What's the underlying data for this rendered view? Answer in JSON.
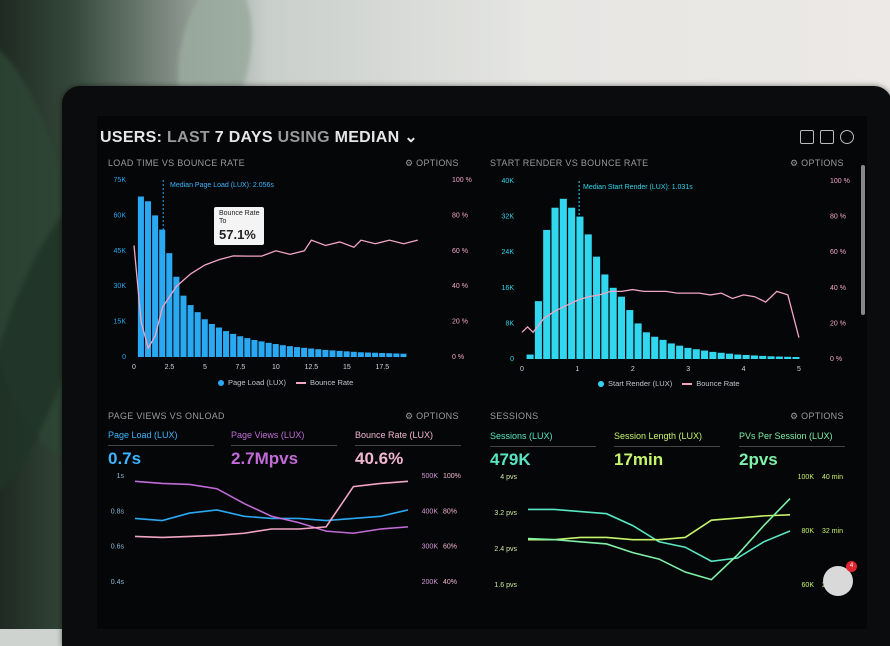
{
  "colors": {
    "blue": "#2aa8f2",
    "pink": "#f2a6c4",
    "cyan": "#31d6ef",
    "green": "#58e6c2",
    "lime": "#c6f56b",
    "purple": "#b05bd6",
    "muted": "#9a9a9a"
  },
  "header": {
    "prefix": "USERS:",
    "range_word": "LAST",
    "days": "7 DAYS",
    "using": "USING",
    "metric": "MEDIAN"
  },
  "panels": {
    "p1": {
      "title": "LOAD TIME VS BOUNCE RATE",
      "options": "⚙ OPTIONS",
      "annotation": "Median Page Load (LUX): 2.056s",
      "tooltip": {
        "label1": "Bounce Rate",
        "label2": "To",
        "value": "57.1%"
      },
      "legend": {
        "a": "Page Load (LUX)",
        "b": "Bounce Rate"
      }
    },
    "p2": {
      "title": "START RENDER VS BOUNCE RATE",
      "options": "⚙ OPTIONS",
      "annotation": "Median Start Render (LUX): 1.031s",
      "legend": {
        "a": "Start Render (LUX)",
        "b": "Bounce Rate"
      }
    },
    "p3": {
      "title": "PAGE VIEWS VS ONLOAD",
      "options": "⚙ OPTIONS",
      "kpis": [
        {
          "label": "Page Load (LUX)",
          "value": "0.7s"
        },
        {
          "label": "Page Views (LUX)",
          "value": "2.7Mpvs"
        },
        {
          "label": "Bounce Rate (LUX)",
          "value": "40.6%"
        }
      ]
    },
    "p4": {
      "title": "SESSIONS",
      "options": "⚙ OPTIONS",
      "kpis": [
        {
          "label": "Sessions (LUX)",
          "value": "479K"
        },
        {
          "label": "Session Length (LUX)",
          "value": "17min"
        },
        {
          "label": "PVs Per Session (LUX)",
          "value": "2pvs"
        }
      ]
    }
  },
  "badge": "4",
  "chart_data": [
    {
      "type": "bar",
      "title": "LOAD TIME VS BOUNCE RATE",
      "x": [
        0.5,
        1,
        1.5,
        2,
        2.5,
        3,
        3.5,
        4,
        4.5,
        5,
        5.5,
        6,
        6.5,
        7,
        7.5,
        8,
        8.5,
        9,
        9.5,
        10,
        10.5,
        11,
        11.5,
        12,
        12.5,
        13,
        13.5,
        14,
        14.5,
        15,
        15.5,
        16,
        16.5,
        17,
        17.5,
        18,
        18.5,
        19
      ],
      "series": [
        {
          "name": "Page Load (LUX)",
          "axis": "left",
          "values": [
            68000,
            66000,
            60000,
            54000,
            44000,
            34000,
            26000,
            22000,
            19000,
            16000,
            14000,
            12500,
            11000,
            9800,
            8800,
            8000,
            7200,
            6600,
            6000,
            5500,
            5000,
            4600,
            4200,
            3900,
            3600,
            3300,
            3000,
            2800,
            2600,
            2400,
            2200,
            2000,
            1900,
            1800,
            1700,
            1600,
            1500,
            1400
          ]
        },
        {
          "name": "Bounce Rate",
          "axis": "right",
          "points": [
            [
              0,
              63
            ],
            [
              0.5,
              20
            ],
            [
              1,
              5
            ],
            [
              1.5,
              12
            ],
            [
              2,
              28
            ],
            [
              3,
              40
            ],
            [
              4,
              47
            ],
            [
              5,
              52
            ],
            [
              6,
              55
            ],
            [
              7,
              57.1
            ],
            [
              8,
              57
            ],
            [
              9,
              57
            ],
            [
              10,
              60
            ],
            [
              11,
              58
            ],
            [
              12,
              60
            ],
            [
              12.5,
              66
            ],
            [
              13.5,
              63
            ],
            [
              14.5,
              65
            ],
            [
              15.5,
              62
            ],
            [
              16,
              66
            ],
            [
              17,
              64
            ],
            [
              18,
              66
            ],
            [
              19,
              64
            ],
            [
              20,
              66
            ]
          ]
        }
      ],
      "xticks": [
        "0",
        "2.5",
        "5",
        "7.5",
        "10",
        "12.5",
        "15",
        "17.5"
      ],
      "xlim": [
        0,
        21
      ],
      "yticks_left": [
        "0",
        "15K",
        "30K",
        "45K",
        "60K",
        "75K"
      ],
      "ylim_left": [
        0,
        75000
      ],
      "yticks_right": [
        "0 %",
        "20 %",
        "40 %",
        "60 %",
        "80 %",
        "100 %"
      ],
      "ylim_right": [
        0,
        100
      ],
      "marker_x": 2.056
    },
    {
      "type": "bar",
      "title": "START RENDER VS BOUNCE RATE",
      "x": [
        0.15,
        0.3,
        0.45,
        0.6,
        0.75,
        0.9,
        1.05,
        1.2,
        1.35,
        1.5,
        1.65,
        1.8,
        1.95,
        2.1,
        2.25,
        2.4,
        2.55,
        2.7,
        2.85,
        3.0,
        3.15,
        3.3,
        3.45,
        3.6,
        3.75,
        3.9,
        4.05,
        4.2,
        4.35,
        4.5,
        4.65,
        4.8,
        4.95
      ],
      "series": [
        {
          "name": "Start Render (LUX)",
          "axis": "left",
          "values": [
            1000,
            13000,
            29000,
            34000,
            36000,
            34000,
            32000,
            28000,
            23000,
            19000,
            16000,
            14000,
            11000,
            8000,
            6000,
            5000,
            4300,
            3500,
            3000,
            2500,
            2200,
            1900,
            1600,
            1400,
            1200,
            1000,
            900,
            800,
            700,
            600,
            550,
            500,
            450
          ]
        },
        {
          "name": "Bounce Rate",
          "axis": "right",
          "points": [
            [
              0,
              15
            ],
            [
              0.1,
              18
            ],
            [
              0.2,
              15
            ],
            [
              0.4,
              23
            ],
            [
              0.6,
              27
            ],
            [
              0.8,
              30
            ],
            [
              1.0,
              33
            ],
            [
              1.2,
              35
            ],
            [
              1.4,
              36
            ],
            [
              1.6,
              38
            ],
            [
              1.8,
              38
            ],
            [
              2.0,
              39
            ],
            [
              2.2,
              38
            ],
            [
              2.4,
              38
            ],
            [
              2.6,
              38
            ],
            [
              2.8,
              37
            ],
            [
              3.0,
              37
            ],
            [
              3.2,
              37
            ],
            [
              3.4,
              36
            ],
            [
              3.6,
              37
            ],
            [
              3.8,
              34
            ],
            [
              4.0,
              36
            ],
            [
              4.2,
              35
            ],
            [
              4.4,
              32
            ],
            [
              4.6,
              38
            ],
            [
              4.8,
              36
            ],
            [
              5.0,
              12
            ]
          ]
        }
      ],
      "xticks": [
        "0",
        "1",
        "2",
        "3",
        "4",
        "5"
      ],
      "xlim": [
        0,
        5.2
      ],
      "yticks_left": [
        "0",
        "8K",
        "16K",
        "24K",
        "32K",
        "40K"
      ],
      "ylim_left": [
        0,
        40000
      ],
      "yticks_right": [
        "0 %",
        "20 %",
        "40 %",
        "60 %",
        "80 %",
        "100 %"
      ],
      "ylim_right": [
        0,
        100
      ],
      "marker_x": 1.031
    },
    {
      "type": "line",
      "title": "PAGE VIEWS VS ONLOAD",
      "series": [
        {
          "name": "Page Load (LUX)",
          "points": [
            [
              0,
              0.6
            ],
            [
              1,
              0.58
            ],
            [
              2,
              0.65
            ],
            [
              3,
              0.68
            ],
            [
              4,
              0.62
            ],
            [
              5,
              0.6
            ],
            [
              6,
              0.6
            ],
            [
              7,
              0.58
            ],
            [
              8,
              0.6
            ],
            [
              9,
              0.62
            ],
            [
              10,
              0.68
            ]
          ]
        },
        {
          "name": "Page Views (LUX)",
          "points": [
            [
              0,
              0.95
            ],
            [
              1,
              0.93
            ],
            [
              2,
              0.92
            ],
            [
              3,
              0.88
            ],
            [
              4,
              0.74
            ],
            [
              5,
              0.62
            ],
            [
              6,
              0.56
            ],
            [
              7,
              0.48
            ],
            [
              8,
              0.46
            ],
            [
              9,
              0.5
            ],
            [
              10,
              0.52
            ]
          ]
        },
        {
          "name": "Bounce Rate (LUX)",
          "points": [
            [
              0,
              0.43
            ],
            [
              1,
              0.42
            ],
            [
              2,
              0.43
            ],
            [
              3,
              0.44
            ],
            [
              4,
              0.46
            ],
            [
              5,
              0.5
            ],
            [
              6,
              0.5
            ],
            [
              7,
              0.52
            ],
            [
              8,
              0.9
            ],
            [
              9,
              0.93
            ],
            [
              10,
              0.95
            ]
          ]
        }
      ],
      "yticks_left": [
        "0.4s",
        "0.6s",
        "0.8s",
        "1s"
      ],
      "yticks_mid": [
        "200K",
        "300K",
        "400K",
        "500K"
      ],
      "yticks_right": [
        "40%",
        "60%",
        "80%",
        "100%"
      ]
    },
    {
      "type": "line",
      "title": "SESSIONS",
      "series": [
        {
          "name": "Sessions (LUX)",
          "points": [
            [
              0,
              0.7
            ],
            [
              1,
              0.7
            ],
            [
              2,
              0.68
            ],
            [
              3,
              0.66
            ],
            [
              4,
              0.55
            ],
            [
              5,
              0.4
            ],
            [
              6,
              0.35
            ],
            [
              7,
              0.22
            ],
            [
              8,
              0.25
            ],
            [
              9,
              0.4
            ],
            [
              10,
              0.5
            ]
          ]
        },
        {
          "name": "Session Length (LUX)",
          "points": [
            [
              0,
              0.42
            ],
            [
              1,
              0.42
            ],
            [
              2,
              0.44
            ],
            [
              3,
              0.44
            ],
            [
              4,
              0.42
            ],
            [
              5,
              0.42
            ],
            [
              6,
              0.44
            ],
            [
              7,
              0.6
            ],
            [
              8,
              0.62
            ],
            [
              9,
              0.64
            ],
            [
              10,
              0.65
            ]
          ]
        },
        {
          "name": "PVs Per Session (LUX)",
          "points": [
            [
              0,
              0.43
            ],
            [
              1,
              0.42
            ],
            [
              2,
              0.4
            ],
            [
              3,
              0.38
            ],
            [
              4,
              0.3
            ],
            [
              5,
              0.24
            ],
            [
              6,
              0.12
            ],
            [
              7,
              0.05
            ],
            [
              8,
              0.28
            ],
            [
              9,
              0.55
            ],
            [
              10,
              0.8
            ]
          ]
        }
      ],
      "yticks_left": [
        "1.6 pvs",
        "2.4 pvs",
        "3.2 pvs",
        "4 pvs"
      ],
      "yticks_mid": [
        "60K",
        "80K",
        "100K"
      ],
      "yticks_right": [
        "24 min",
        "32 min",
        "40 min"
      ]
    }
  ]
}
